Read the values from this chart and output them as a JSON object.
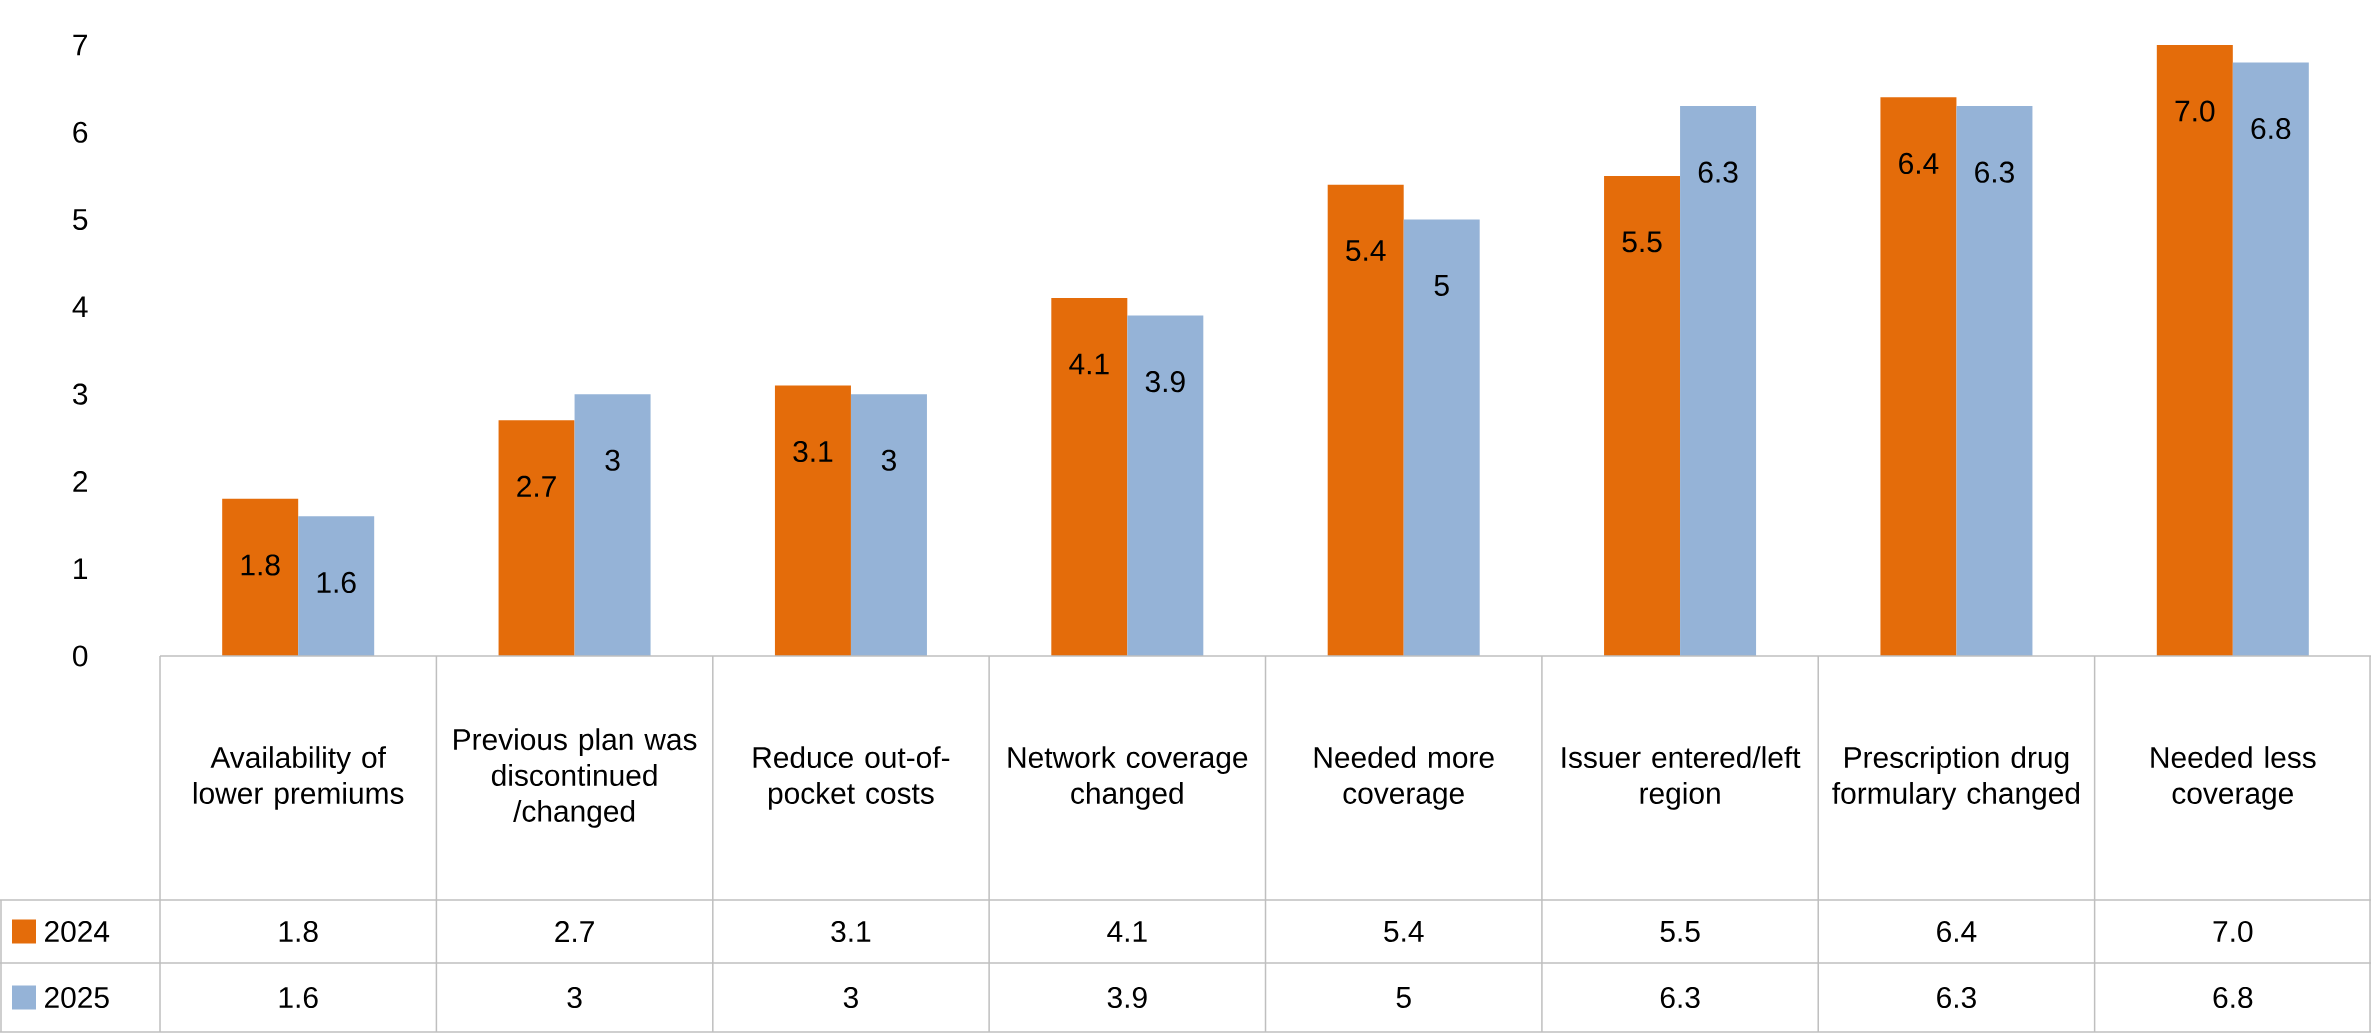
{
  "chart_data": {
    "type": "bar",
    "categories": [
      "Availability of lower premiums",
      "Previous plan was discontinued /changed",
      "Reduce out-of-pocket costs",
      "Network coverage changed",
      "Needed more coverage",
      "Issuer entered/left region",
      "Prescription drug formulary changed",
      "Needed less coverage"
    ],
    "series": [
      {
        "name": "2024",
        "color": "#e46c0a",
        "values": [
          1.8,
          2.7,
          3.1,
          4.1,
          5.4,
          5.5,
          6.4,
          7.0
        ],
        "value_labels": [
          "1.8",
          "2.7",
          "3.1",
          "4.1",
          "5.4",
          "5.5",
          "6.4",
          "7.0"
        ]
      },
      {
        "name": "2025",
        "color": "#95b3d7",
        "values": [
          1.6,
          3,
          3,
          3.9,
          5,
          6.3,
          6.3,
          6.8
        ],
        "value_labels": [
          "1.6",
          "3",
          "3",
          "3.9",
          "5",
          "6.3",
          "6.3",
          "6.8"
        ]
      }
    ],
    "ylim": [
      0,
      7
    ],
    "yticks": [
      0,
      1,
      2,
      3,
      4,
      5,
      6,
      7
    ],
    "legend": "bottom",
    "grid": false
  }
}
